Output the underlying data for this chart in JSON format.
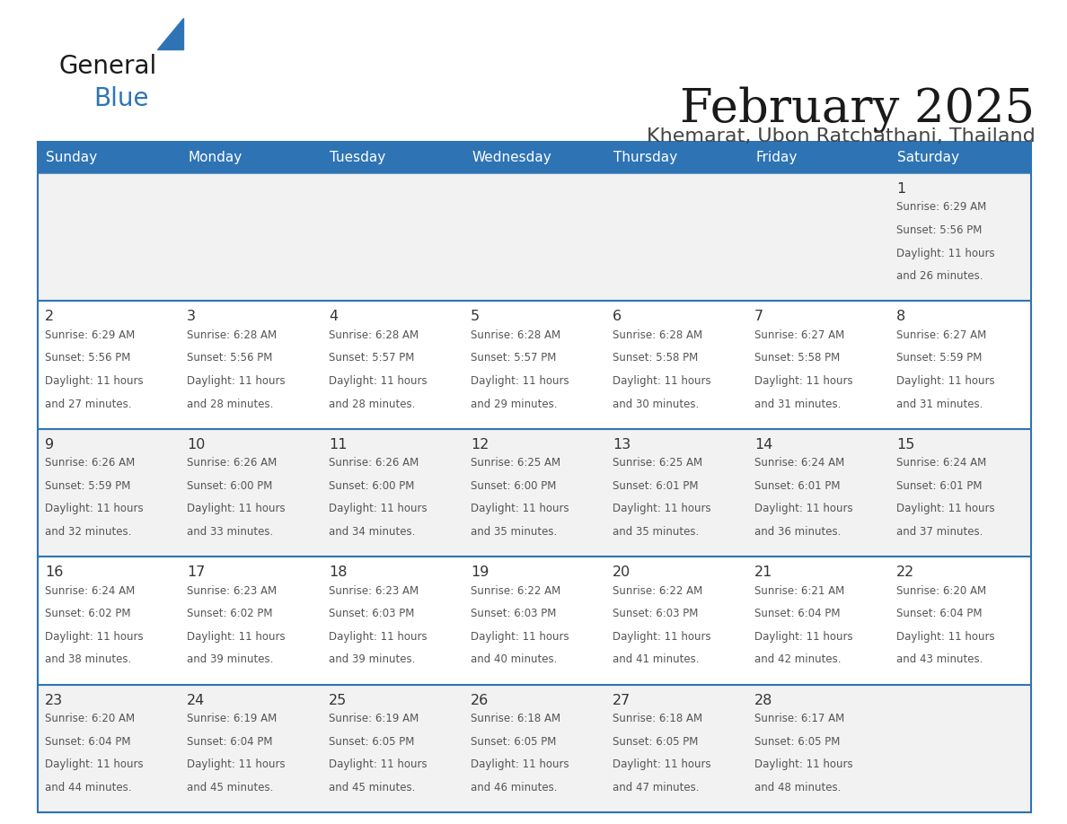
{
  "title": "February 2025",
  "subtitle": "Khemarat, Ubon Ratchathani, Thailand",
  "days_of_week": [
    "Sunday",
    "Monday",
    "Tuesday",
    "Wednesday",
    "Thursday",
    "Friday",
    "Saturday"
  ],
  "header_bg": "#2E74B5",
  "header_text": "#FFFFFF",
  "row_bg_odd": "#F2F2F2",
  "row_bg_even": "#FFFFFF",
  "separator_color": "#2E74B5",
  "day_number_color": "#333333",
  "info_color": "#555555",
  "title_color": "#1a1a1a",
  "subtitle_color": "#444444",
  "logo_text_color": "#1a1a1a",
  "logo_blue_color": "#2E74B5",
  "calendar_data": [
    [
      null,
      null,
      null,
      null,
      null,
      null,
      {
        "day": 1,
        "sunrise": "6:29 AM",
        "sunset": "5:56 PM",
        "daylight": "11 hours and 26 minutes."
      }
    ],
    [
      {
        "day": 2,
        "sunrise": "6:29 AM",
        "sunset": "5:56 PM",
        "daylight": "11 hours and 27 minutes."
      },
      {
        "day": 3,
        "sunrise": "6:28 AM",
        "sunset": "5:56 PM",
        "daylight": "11 hours and 28 minutes."
      },
      {
        "day": 4,
        "sunrise": "6:28 AM",
        "sunset": "5:57 PM",
        "daylight": "11 hours and 28 minutes."
      },
      {
        "day": 5,
        "sunrise": "6:28 AM",
        "sunset": "5:57 PM",
        "daylight": "11 hours and 29 minutes."
      },
      {
        "day": 6,
        "sunrise": "6:28 AM",
        "sunset": "5:58 PM",
        "daylight": "11 hours and 30 minutes."
      },
      {
        "day": 7,
        "sunrise": "6:27 AM",
        "sunset": "5:58 PM",
        "daylight": "11 hours and 31 minutes."
      },
      {
        "day": 8,
        "sunrise": "6:27 AM",
        "sunset": "5:59 PM",
        "daylight": "11 hours and 31 minutes."
      }
    ],
    [
      {
        "day": 9,
        "sunrise": "6:26 AM",
        "sunset": "5:59 PM",
        "daylight": "11 hours and 32 minutes."
      },
      {
        "day": 10,
        "sunrise": "6:26 AM",
        "sunset": "6:00 PM",
        "daylight": "11 hours and 33 minutes."
      },
      {
        "day": 11,
        "sunrise": "6:26 AM",
        "sunset": "6:00 PM",
        "daylight": "11 hours and 34 minutes."
      },
      {
        "day": 12,
        "sunrise": "6:25 AM",
        "sunset": "6:00 PM",
        "daylight": "11 hours and 35 minutes."
      },
      {
        "day": 13,
        "sunrise": "6:25 AM",
        "sunset": "6:01 PM",
        "daylight": "11 hours and 35 minutes."
      },
      {
        "day": 14,
        "sunrise": "6:24 AM",
        "sunset": "6:01 PM",
        "daylight": "11 hours and 36 minutes."
      },
      {
        "day": 15,
        "sunrise": "6:24 AM",
        "sunset": "6:01 PM",
        "daylight": "11 hours and 37 minutes."
      }
    ],
    [
      {
        "day": 16,
        "sunrise": "6:24 AM",
        "sunset": "6:02 PM",
        "daylight": "11 hours and 38 minutes."
      },
      {
        "day": 17,
        "sunrise": "6:23 AM",
        "sunset": "6:02 PM",
        "daylight": "11 hours and 39 minutes."
      },
      {
        "day": 18,
        "sunrise": "6:23 AM",
        "sunset": "6:03 PM",
        "daylight": "11 hours and 39 minutes."
      },
      {
        "day": 19,
        "sunrise": "6:22 AM",
        "sunset": "6:03 PM",
        "daylight": "11 hours and 40 minutes."
      },
      {
        "day": 20,
        "sunrise": "6:22 AM",
        "sunset": "6:03 PM",
        "daylight": "11 hours and 41 minutes."
      },
      {
        "day": 21,
        "sunrise": "6:21 AM",
        "sunset": "6:04 PM",
        "daylight": "11 hours and 42 minutes."
      },
      {
        "day": 22,
        "sunrise": "6:20 AM",
        "sunset": "6:04 PM",
        "daylight": "11 hours and 43 minutes."
      }
    ],
    [
      {
        "day": 23,
        "sunrise": "6:20 AM",
        "sunset": "6:04 PM",
        "daylight": "11 hours and 44 minutes."
      },
      {
        "day": 24,
        "sunrise": "6:19 AM",
        "sunset": "6:04 PM",
        "daylight": "11 hours and 45 minutes."
      },
      {
        "day": 25,
        "sunrise": "6:19 AM",
        "sunset": "6:05 PM",
        "daylight": "11 hours and 45 minutes."
      },
      {
        "day": 26,
        "sunrise": "6:18 AM",
        "sunset": "6:05 PM",
        "daylight": "11 hours and 46 minutes."
      },
      {
        "day": 27,
        "sunrise": "6:18 AM",
        "sunset": "6:05 PM",
        "daylight": "11 hours and 47 minutes."
      },
      {
        "day": 28,
        "sunrise": "6:17 AM",
        "sunset": "6:05 PM",
        "daylight": "11 hours and 48 minutes."
      },
      null
    ]
  ],
  "fig_width": 11.88,
  "fig_height": 9.18,
  "dpi": 100
}
